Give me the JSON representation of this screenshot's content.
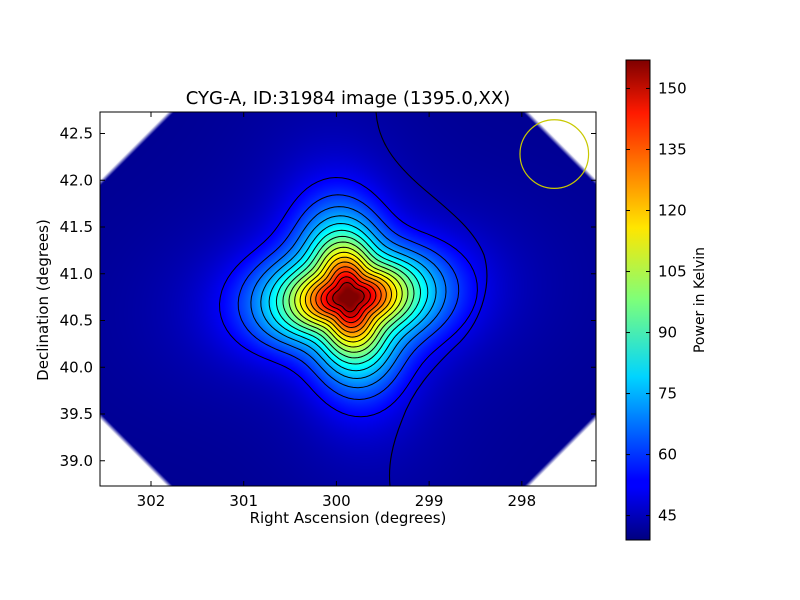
{
  "chart_data": {
    "type": "heatmap",
    "title": "CYG-A, ID:31984 image (1395.0,XX)",
    "xlabel": "Right Ascension (degrees)",
    "ylabel": "Declination (degrees)",
    "xlim": [
      302.55,
      297.2
    ],
    "ylim": [
      38.73,
      42.73
    ],
    "x_ticks": [
      302,
      301,
      300,
      299,
      298
    ],
    "x_tick_labels": [
      "302",
      "301",
      "300",
      "299",
      "298"
    ],
    "y_ticks": [
      39.0,
      39.5,
      40.0,
      40.5,
      41.0,
      41.5,
      42.0,
      42.5
    ],
    "y_tick_labels": [
      "39.0",
      "39.5",
      "40.0",
      "40.5",
      "41.0",
      "41.5",
      "42.0",
      "42.5"
    ],
    "colorbar": {
      "label": "Power in Kelvin",
      "range": [
        39,
        157
      ],
      "ticks": [
        45,
        60,
        75,
        90,
        105,
        120,
        135,
        150
      ],
      "tick_labels": [
        "45",
        "60",
        "75",
        "90",
        "105",
        "120",
        "135",
        "150"
      ],
      "colormap": "jet"
    },
    "source": {
      "center_ra": 299.87,
      "center_dec": 40.75,
      "peak_kelvin": 155,
      "background_kelvin": 41
    },
    "beam_circle": {
      "ra": 297.65,
      "dec": 42.28,
      "radius_deg": 0.37,
      "color": "#c8c800"
    }
  }
}
